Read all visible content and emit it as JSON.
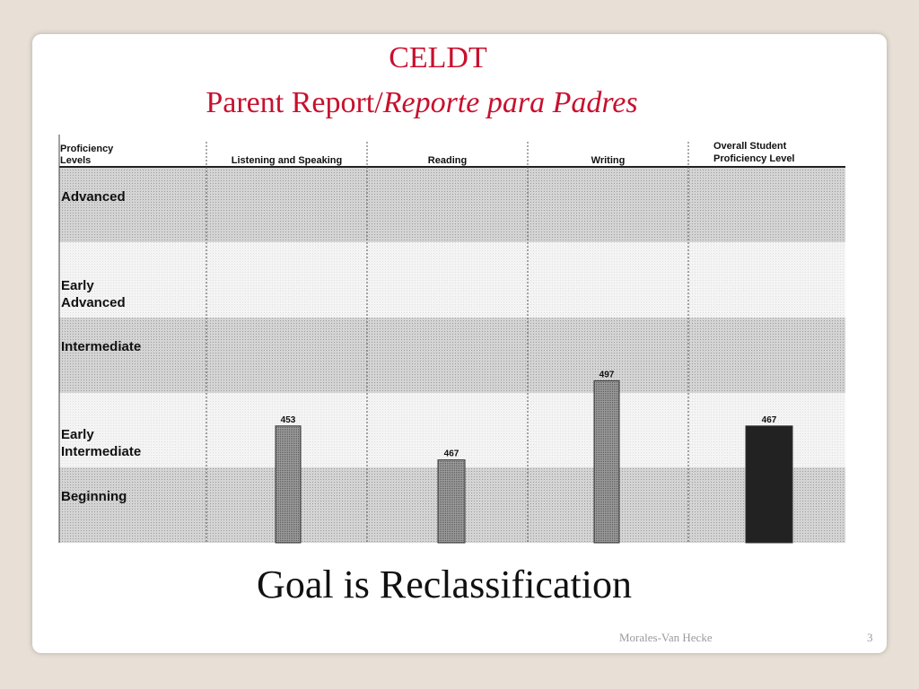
{
  "slide": {
    "title_line1": "CELDT",
    "title_line2_regular": "Parent Report/",
    "title_line2_italic": "Reporte para Padres",
    "goal_text": "Goal is Reclassification",
    "footer_author": "Morales-Van Hecke",
    "slide_number": "3"
  },
  "chart_data": {
    "type": "bar",
    "row_header": [
      "Proficiency",
      "Levels"
    ],
    "categories": [
      "Listening and Speaking",
      "Reading",
      "Writing"
    ],
    "overall_header": [
      "Overall Student",
      "Proficiency Level"
    ],
    "levels": [
      [
        "Advanced"
      ],
      [
        "Early",
        "Advanced"
      ],
      [
        "Intermediate"
      ],
      [
        "Early",
        "Intermediate"
      ],
      [
        "Beginning"
      ]
    ],
    "values": [
      453,
      467,
      497
    ],
    "overall_value": 467,
    "bar_level_positions": [
      1.55,
      1.1,
      2.15,
      1.55
    ],
    "colors": {
      "bars": "#8a8a8a",
      "overall_bar": "#222222",
      "shade": "#d9d9d9",
      "title": "#c8102e"
    }
  }
}
